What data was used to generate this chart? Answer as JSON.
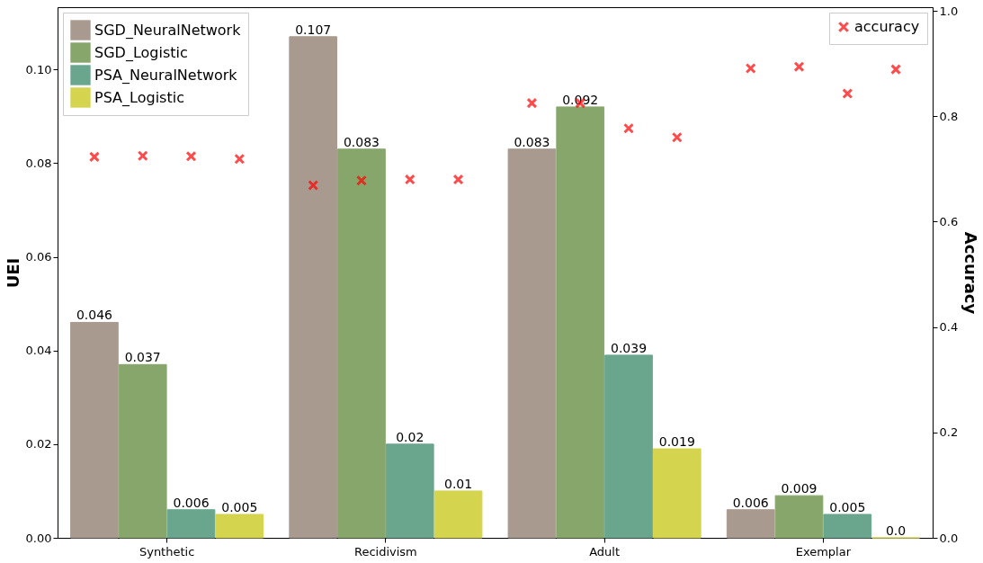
{
  "chart_data": {
    "type": "bar",
    "categories": [
      "Synthetic",
      "Recidivism",
      "Adult",
      "Exemplar"
    ],
    "ylabel": "UEI",
    "y2label": "Accuracy",
    "ylim": [
      0,
      0.1133
    ],
    "yticks": [
      {
        "value": 0,
        "label": "0.00"
      },
      {
        "value": 0.02,
        "label": "0.02"
      },
      {
        "value": 0.04,
        "label": "0.04"
      },
      {
        "value": 0.06,
        "label": "0.06"
      },
      {
        "value": 0.08,
        "label": "0.08"
      },
      {
        "value": 0.1,
        "label": "0.10"
      }
    ],
    "y2lim": [
      0,
      1.007
    ],
    "y2ticks": [
      {
        "value": 0,
        "label": "0.0"
      },
      0.2,
      0.4,
      0.6,
      0.8,
      {
        "value": 1.0,
        "label": "1.0"
      }
    ],
    "grid": false,
    "legend": "top left",
    "marker": "cross",
    "series": [
      {
        "name": "SGD_NeuralNetwork",
        "color": "#a89a8e",
        "values": [
          0.046,
          0.107,
          0.083,
          0.006
        ],
        "value_labels": [
          "0.046",
          "0.107",
          "0.083",
          "0.006"
        ]
      },
      {
        "name": "SGD_Logistic",
        "color": "#87a66b",
        "values": [
          0.037,
          0.083,
          0.092,
          0.009
        ],
        "value_labels": [
          "0.037",
          "0.083",
          "0.092",
          "0.009"
        ]
      },
      {
        "name": "PSA_NeuralNetwork",
        "color": "#6aa68e",
        "values": [
          0.006,
          0.02,
          0.039,
          0.005
        ],
        "value_labels": [
          "0.006",
          "0.02",
          "0.039",
          "0.005"
        ]
      },
      {
        "name": "PSA_Logistic",
        "color": "#d4d44f",
        "values": [
          0.005,
          0.01,
          0.019,
          0.0
        ],
        "value_labels": [
          "0.005",
          "0.01",
          "0.019",
          "0.0"
        ]
      },
      {
        "name": "accuracy",
        "type": "scatter",
        "axis": "y2",
        "color": "#ff0000",
        "values": [
          0.723,
          0.669,
          0.825,
          0.891
        ]
      },
      {
        "type": "scatter",
        "axis": "y2",
        "color": "#ff0000",
        "values": [
          0.725,
          0.678,
          0.825,
          0.894
        ]
      },
      {
        "type": "scatter",
        "axis": "y2",
        "color": "#ff0000",
        "values": [
          0.724,
          0.68,
          0.777,
          0.843
        ]
      },
      {
        "type": "scatter",
        "axis": "y2",
        "color": "#ff0000",
        "values": [
          0.719,
          0.68,
          0.76,
          0.889
        ]
      }
    ]
  }
}
